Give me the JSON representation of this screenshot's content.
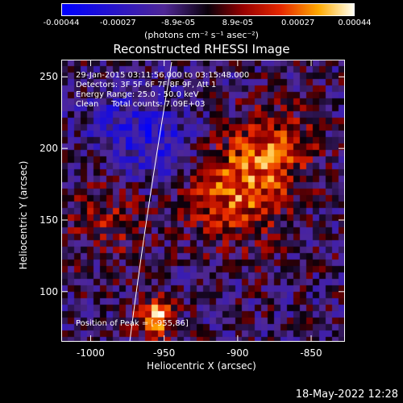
{
  "colorbar": {
    "tick_labels": [
      "-0.00044",
      "-0.00027",
      "-8.9e-05",
      "8.9e-05",
      "0.00027",
      "0.00044"
    ],
    "tick_values": [
      -0.00044,
      -0.00027,
      -8.9e-05,
      8.9e-05,
      0.00027,
      0.00044
    ],
    "range": [
      -0.00044,
      0.00044
    ],
    "units": "(photons cm⁻² s⁻¹ asec⁻²)"
  },
  "title": "Reconstructed RHESSI Image",
  "info": {
    "time_range": "29-Jan-2015 03:11:56.000 to 03:15:48.000",
    "detectors": "Detectors: 3F 5F 6F 7F 8F 9F, Att 1",
    "energy": "Energy Range: 25.0 - 50.0 keV",
    "clean": "Clean     Total counts: 7.09E+03",
    "peak": "Position of Peak = [-955,86]"
  },
  "axes": {
    "xlabel": "Heliocentric X (arcsec)",
    "ylabel": "Heliocentric Y (arcsec)",
    "xlim": [
      -1020,
      -827
    ],
    "ylim": [
      65,
      262
    ],
    "xticks": [
      -1000,
      -950,
      -900,
      -850
    ],
    "xtick_labels": [
      "-1000",
      "-950",
      "-900",
      "-850"
    ],
    "yticks": [
      100,
      150,
      200,
      250
    ],
    "ytick_labels": [
      "100",
      "150",
      "200",
      "250"
    ]
  },
  "footer": "18-May-2022 12:28",
  "colors": {
    "background": "#000000",
    "text": "#ffffff"
  }
}
